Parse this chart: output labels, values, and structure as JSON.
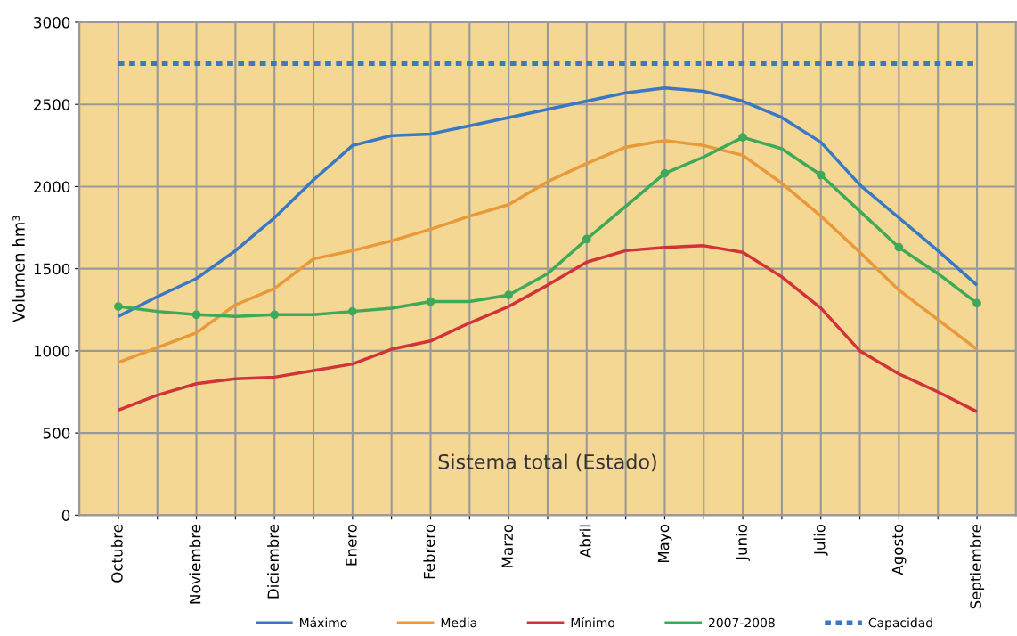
{
  "chart_data": {
    "type": "line",
    "ylabel": "Volumen hm³",
    "annotations": [
      "Sistema total (Estado)"
    ],
    "categories": [
      "Octubre",
      null,
      "Noviembre",
      null,
      "Diciembre",
      null,
      "Enero",
      null,
      "Febrero",
      null,
      "Marzo",
      null,
      "Abril",
      null,
      "Mayo",
      null,
      "Junio",
      null,
      "Julio",
      null,
      "Agosto",
      null,
      "Septiembre"
    ],
    "series": [
      {
        "name": "Máximo",
        "color": "#3a78c3",
        "values": [
          1210,
          1330,
          1440,
          1610,
          1810,
          2040,
          2250,
          2310,
          2320,
          2370,
          2420,
          2470,
          2520,
          2570,
          2600,
          2580,
          2520,
          2420,
          2270,
          2010,
          1810,
          1610,
          1400
        ]
      },
      {
        "name": "Media",
        "color": "#e8993a",
        "values": [
          930,
          1020,
          1110,
          1280,
          1380,
          1560,
          1610,
          1670,
          1740,
          1820,
          1890,
          2030,
          2140,
          2240,
          2280,
          2250,
          2190,
          2020,
          1820,
          1600,
          1370,
          1190,
          1010
        ]
      },
      {
        "name": "Mínimo",
        "color": "#d2333a",
        "values": [
          640,
          730,
          800,
          830,
          840,
          880,
          920,
          1010,
          1060,
          1170,
          1270,
          1400,
          1540,
          1610,
          1630,
          1640,
          1600,
          1450,
          1260,
          1000,
          860,
          750,
          630
        ]
      },
      {
        "name": "2007-2008",
        "color": "#3daa5a",
        "marker": "circle",
        "values": [
          1270,
          1240,
          1220,
          1210,
          1220,
          1220,
          1240,
          1260,
          1300,
          1300,
          1340,
          1470,
          1680,
          1880,
          2080,
          2180,
          2300,
          2230,
          2070,
          1850,
          1630,
          1470,
          1290
        ]
      },
      {
        "name": "Capacidad",
        "color": "#3a78c3",
        "line_style": "dashed",
        "values": [
          2750,
          2750,
          2750,
          2750,
          2750,
          2750,
          2750,
          2750,
          2750,
          2750,
          2750,
          2750,
          2750,
          2750,
          2750,
          2750,
          2750,
          2750,
          2750,
          2750,
          2750,
          2750,
          2750
        ]
      }
    ],
    "ylim": [
      0,
      3000
    ],
    "yticks": [
      0,
      500,
      1000,
      1500,
      2000,
      2500,
      3000
    ],
    "grid": true,
    "legend": "bottom"
  }
}
